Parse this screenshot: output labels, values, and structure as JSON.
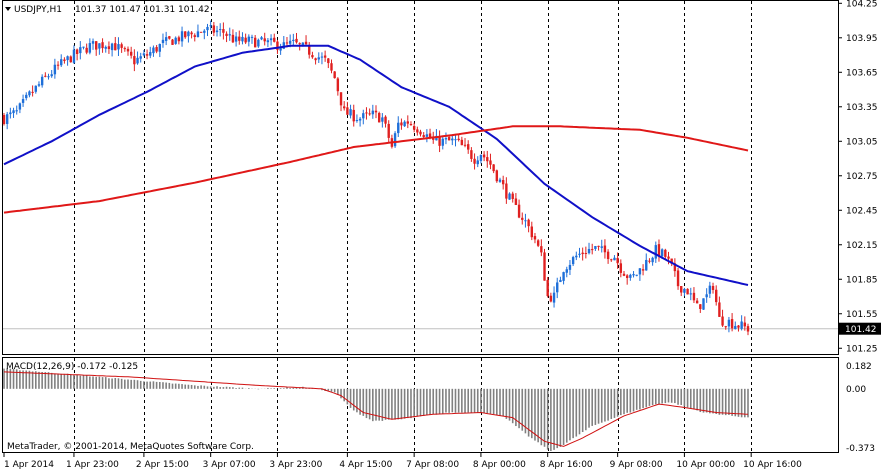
{
  "header": {
    "symbol_timeframe": "USDJPY,H1",
    "ohlc": "101.37 101.47 101.31 101.42"
  },
  "macd": {
    "label": "MACD(12,26,9) -0.172 -0.125",
    "scale_max": "0.182",
    "scale_zero": "0.00",
    "scale_min": "-0.373"
  },
  "copyright": "MetaTrader, © 2001-2014, MetaQuotes Software Corp.",
  "colors": {
    "background": "#ffffff",
    "bull_candle": "#1e6fd9",
    "bear_candle": "#e02020",
    "ma_fast": "#1010c8",
    "ma_slow": "#e01818",
    "macd_hist": "#808080",
    "macd_signal": "#d01010",
    "grid": "#000000",
    "bid_line": "#c0c0c0"
  },
  "chart_data": [
    {
      "type": "candlestick",
      "symbol": "USDJPY",
      "timeframe": "H1",
      "ylim": [
        101.2,
        104.27
      ],
      "y_ticks": [
        "104.25",
        "103.95",
        "103.65",
        "103.35",
        "103.05",
        "102.75",
        "102.45",
        "102.15",
        "101.85",
        "101.55",
        "101.25"
      ],
      "x_ticks": [
        "1 Apr 2014",
        "1 Apr 23:00",
        "2 Apr 15:00",
        "3 Apr 07:00",
        "3 Apr 23:00",
        "4 Apr 15:00",
        "7 Apr 08:00",
        "8 Apr 00:00",
        "8 Apr 16:00",
        "9 Apr 08:00",
        "10 Apr 00:00",
        "10 Apr 16:00"
      ],
      "last_price": "101.42",
      "close_anchors": [
        [
          0,
          103.25
        ],
        [
          4,
          103.3
        ],
        [
          8,
          103.45
        ],
        [
          13,
          103.6
        ],
        [
          17,
          103.7
        ],
        [
          21,
          103.78
        ],
        [
          27,
          103.88
        ],
        [
          34,
          103.9
        ],
        [
          41,
          103.75
        ],
        [
          45,
          103.8
        ],
        [
          50,
          103.9
        ],
        [
          55,
          103.95
        ],
        [
          59,
          103.98
        ],
        [
          63,
          104.02
        ],
        [
          69,
          104.0
        ],
        [
          73,
          103.92
        ],
        [
          78,
          103.92
        ],
        [
          84,
          103.9
        ],
        [
          88,
          103.88
        ],
        [
          91,
          103.9
        ],
        [
          95,
          103.85
        ],
        [
          101,
          103.75
        ],
        [
          104,
          103.6
        ],
        [
          107,
          103.3
        ],
        [
          112,
          103.25
        ],
        [
          116,
          103.28
        ],
        [
          119,
          103.25
        ],
        [
          122,
          103.0
        ],
        [
          124,
          103.2
        ],
        [
          127,
          103.22
        ],
        [
          131,
          103.15
        ],
        [
          135,
          103.05
        ],
        [
          139,
          103.05
        ],
        [
          142,
          103.05
        ],
        [
          145,
          102.98
        ],
        [
          148,
          102.9
        ],
        [
          150,
          102.95
        ],
        [
          153,
          102.85
        ],
        [
          156,
          102.7
        ],
        [
          160,
          102.5
        ],
        [
          164,
          102.35
        ],
        [
          167,
          102.2
        ],
        [
          169,
          102.05
        ],
        [
          171,
          101.7
        ],
        [
          173,
          101.7
        ],
        [
          176,
          101.95
        ],
        [
          178,
          102.0
        ],
        [
          180,
          102.05
        ],
        [
          183,
          102.1
        ],
        [
          186,
          102.12
        ],
        [
          189,
          102.08
        ],
        [
          192,
          102.05
        ],
        [
          194,
          101.95
        ],
        [
          197,
          101.85
        ],
        [
          199,
          101.9
        ],
        [
          202,
          102.0
        ],
        [
          205,
          102.1
        ],
        [
          208,
          102.05
        ],
        [
          210,
          101.95
        ],
        [
          212,
          101.8
        ],
        [
          215,
          101.75
        ],
        [
          218,
          101.6
        ],
        [
          221,
          101.7
        ],
        [
          223,
          101.8
        ],
        [
          225,
          101.5
        ],
        [
          228,
          101.48
        ],
        [
          231,
          101.45
        ],
        [
          234,
          101.42
        ]
      ],
      "moving_averages": [
        {
          "period_guess": "fast",
          "points": [
            [
              0,
              102.85
            ],
            [
              15,
              103.05
            ],
            [
              30,
              103.28
            ],
            [
              45,
              103.48
            ],
            [
              60,
              103.7
            ],
            [
              75,
              103.82
            ],
            [
              90,
              103.88
            ],
            [
              102,
              103.88
            ],
            [
              112,
              103.76
            ],
            [
              125,
              103.52
            ],
            [
              140,
              103.35
            ],
            [
              155,
              103.07
            ],
            [
              170,
              102.68
            ],
            [
              185,
              102.39
            ],
            [
              200,
              102.14
            ],
            [
              215,
              101.92
            ],
            [
              234,
              101.8
            ]
          ]
        },
        {
          "period_guess": "slow",
          "points": [
            [
              0,
              102.43
            ],
            [
              30,
              102.53
            ],
            [
              60,
              102.69
            ],
            [
              90,
              102.87
            ],
            [
              110,
              103.0
            ],
            [
              140,
              103.1
            ],
            [
              160,
              103.18
            ],
            [
              175,
              103.18
            ],
            [
              200,
              103.15
            ],
            [
              215,
              103.08
            ],
            [
              234,
              102.97
            ]
          ]
        }
      ]
    },
    {
      "type": "histogram",
      "name": "MACD(12,26,9)",
      "main": -0.172,
      "signal": -0.125,
      "ylim": [
        -0.373,
        0.182
      ],
      "hist_anchors": [
        [
          0,
          0.12
        ],
        [
          30,
          0.07
        ],
        [
          60,
          0.02
        ],
        [
          80,
          0.0
        ],
        [
          95,
          0.01
        ],
        [
          104,
          -0.02
        ],
        [
          110,
          -0.13
        ],
        [
          116,
          -0.19
        ],
        [
          125,
          -0.18
        ],
        [
          140,
          -0.14
        ],
        [
          150,
          -0.14
        ],
        [
          157,
          -0.16
        ],
        [
          165,
          -0.28
        ],
        [
          172,
          -0.37
        ],
        [
          176,
          -0.33
        ],
        [
          185,
          -0.22
        ],
        [
          195,
          -0.15
        ],
        [
          205,
          -0.09
        ],
        [
          210,
          -0.08
        ],
        [
          220,
          -0.14
        ],
        [
          234,
          -0.17
        ]
      ],
      "signal_anchors": [
        [
          0,
          0.1
        ],
        [
          40,
          0.07
        ],
        [
          80,
          0.02
        ],
        [
          100,
          0.0
        ],
        [
          106,
          -0.04
        ],
        [
          113,
          -0.14
        ],
        [
          122,
          -0.18
        ],
        [
          135,
          -0.15
        ],
        [
          150,
          -0.14
        ],
        [
          160,
          -0.17
        ],
        [
          170,
          -0.31
        ],
        [
          176,
          -0.34
        ],
        [
          182,
          -0.29
        ],
        [
          195,
          -0.16
        ],
        [
          206,
          -0.09
        ],
        [
          214,
          -0.11
        ],
        [
          224,
          -0.14
        ],
        [
          234,
          -0.15
        ]
      ]
    }
  ]
}
